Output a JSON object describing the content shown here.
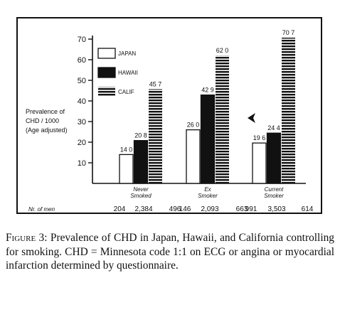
{
  "chart_data": {
    "type": "bar",
    "ylabel_lines": [
      "Prevalence of",
      "CHD / 1000",
      "(Age adjusted)"
    ],
    "ylim": [
      0,
      70
    ],
    "yticks": [
      "10",
      "20",
      "30",
      "40",
      "50",
      "60",
      "70"
    ],
    "categories": [
      {
        "lines": [
          "Never",
          "Smoked"
        ]
      },
      {
        "lines": [
          "Ex",
          "Smoker"
        ]
      },
      {
        "lines": [
          "Current",
          "Smoker"
        ]
      }
    ],
    "series": [
      {
        "name": "JAPAN",
        "values": [
          14.0,
          26.0,
          19.6
        ],
        "labels": [
          "14 0",
          "26 0",
          "19 6"
        ],
        "fill": "white"
      },
      {
        "name": "HAWAII",
        "values": [
          20.8,
          42.9,
          24.4
        ],
        "labels": [
          "20 8",
          "42 9",
          "24 4"
        ],
        "fill": "black"
      },
      {
        "name": "CALIF",
        "values": [
          45.7,
          62.0,
          70.7
        ],
        "labels": [
          "45 7",
          "62 0",
          "70 7"
        ],
        "fill": "striped"
      }
    ],
    "men_label": "Nr. of men",
    "men_counts": [
      [
        "204",
        "2,384",
        "496"
      ],
      [
        "146",
        "2,093",
        "663"
      ],
      [
        "991",
        "3,503",
        "614"
      ]
    ],
    "legend_position": "top-left",
    "grid": false,
    "colors": {
      "ink": "#111111",
      "paper": "#ffffff"
    }
  },
  "caption": {
    "lead": "Figure 3:",
    "text": " Prevalence of CHD in Japan, Hawaii, and California controlling for smoking. CHD = Minnesota code 1:1 on ECG or angina or myocardial infarction determined by questionnaire."
  }
}
